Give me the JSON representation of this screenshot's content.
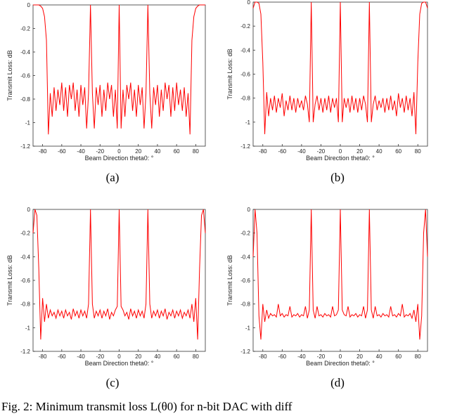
{
  "chart_data": [
    {
      "type": "line",
      "label": "(a)",
      "xlabel": "Beam Direction theta0: °",
      "ylabel": "Transmit Loss: dB",
      "color": "#ff0000",
      "xlim": [
        -90,
        90
      ],
      "xticks": [
        -80,
        -60,
        -40,
        -20,
        0,
        20,
        40,
        60,
        80
      ],
      "ylim": [
        -1.2,
        0
      ],
      "yticks": [
        0,
        -0.2,
        -0.4,
        -0.6,
        -0.8,
        -1,
        -1.2
      ],
      "x": [
        -90,
        -88,
        -86,
        -84,
        -82,
        -80,
        -78,
        -76,
        -74,
        -72,
        -70,
        -68,
        -66,
        -64,
        -62,
        -60,
        -58,
        -56,
        -54,
        -52,
        -50,
        -48,
        -46,
        -44,
        -42,
        -40,
        -38,
        -36,
        -34,
        -32,
        -30,
        -28,
        -26,
        -24,
        -22,
        -20,
        -18,
        -16,
        -14,
        -12,
        -10,
        -8,
        -6,
        -4,
        -2,
        0,
        2,
        4,
        6,
        8,
        10,
        12,
        14,
        16,
        18,
        20,
        22,
        24,
        26,
        28,
        30,
        32,
        34,
        36,
        38,
        40,
        42,
        44,
        46,
        48,
        50,
        52,
        54,
        56,
        58,
        60,
        62,
        64,
        66,
        68,
        70,
        72,
        74,
        76,
        78,
        80,
        82,
        84,
        86,
        88,
        90
      ],
      "values": [
        0,
        0,
        0,
        0,
        -0.01,
        -0.03,
        -0.1,
        -0.3,
        -1.1,
        -0.75,
        -0.95,
        -0.7,
        -0.9,
        -0.72,
        -0.85,
        -0.66,
        -0.9,
        -0.7,
        -0.95,
        -0.68,
        -0.8,
        -0.66,
        -0.9,
        -0.72,
        -0.95,
        -0.68,
        -0.85,
        -0.7,
        -1.05,
        -0.75,
        0,
        -0.75,
        -1.05,
        -0.7,
        -0.85,
        -0.68,
        -0.95,
        -0.72,
        -0.9,
        -0.66,
        -0.8,
        -0.68,
        -0.95,
        -0.72,
        -1.05,
        0,
        -1.05,
        -0.72,
        -0.95,
        -0.68,
        -0.8,
        -0.66,
        -0.9,
        -0.72,
        -0.95,
        -0.68,
        -0.85,
        -0.7,
        -1.05,
        -0.75,
        0,
        -0.75,
        -1.05,
        -0.7,
        -0.85,
        -0.68,
        -0.95,
        -0.72,
        -0.9,
        -0.66,
        -0.8,
        -0.68,
        -0.95,
        -0.7,
        -0.9,
        -0.66,
        -0.85,
        -0.72,
        -0.9,
        -0.7,
        -0.95,
        -0.75,
        -1.1,
        -0.3,
        -0.1,
        -0.03,
        -0.01,
        0,
        0,
        0,
        0
      ]
    },
    {
      "type": "line",
      "label": "(b)",
      "xlabel": "Beam Direction theta0: °",
      "ylabel": "Transmit Loss: dB",
      "color": "#ff0000",
      "xlim": [
        -90,
        90
      ],
      "xticks": [
        -80,
        -60,
        -40,
        -20,
        0,
        20,
        40,
        60,
        80
      ],
      "ylim": [
        -1.2,
        0
      ],
      "yticks": [
        0,
        -0.2,
        -0.4,
        -0.6,
        -0.8,
        -1,
        -1.2
      ],
      "x": [
        -90,
        -88,
        -86,
        -84,
        -82,
        -80,
        -78,
        -76,
        -74,
        -72,
        -70,
        -68,
        -66,
        -64,
        -62,
        -60,
        -58,
        -56,
        -54,
        -52,
        -50,
        -48,
        -46,
        -44,
        -42,
        -40,
        -38,
        -36,
        -34,
        -32,
        -30,
        -28,
        -26,
        -24,
        -22,
        -20,
        -18,
        -16,
        -14,
        -12,
        -10,
        -8,
        -6,
        -4,
        -2,
        0,
        2,
        4,
        6,
        8,
        10,
        12,
        14,
        16,
        18,
        20,
        22,
        24,
        26,
        28,
        30,
        32,
        34,
        36,
        38,
        40,
        42,
        44,
        46,
        48,
        50,
        52,
        54,
        56,
        58,
        60,
        62,
        64,
        66,
        68,
        70,
        72,
        74,
        76,
        78,
        80,
        82,
        84,
        86,
        88,
        90
      ],
      "values": [
        -0.05,
        0,
        0,
        -0.01,
        -0.1,
        -0.5,
        -1.1,
        -0.75,
        -0.95,
        -0.8,
        -0.9,
        -0.78,
        -0.92,
        -0.8,
        -0.88,
        -0.76,
        -0.95,
        -0.82,
        -0.9,
        -0.78,
        -0.9,
        -0.8,
        -0.92,
        -0.8,
        -0.88,
        -0.82,
        -0.9,
        -0.78,
        -0.85,
        -1.0,
        0,
        -1.0,
        -0.85,
        -0.78,
        -0.9,
        -0.8,
        -0.92,
        -0.8,
        -0.9,
        -0.78,
        -0.92,
        -0.8,
        -0.88,
        -0.8,
        -1.0,
        0,
        -1.0,
        -0.8,
        -0.88,
        -0.8,
        -0.92,
        -0.78,
        -0.9,
        -0.8,
        -0.92,
        -0.8,
        -0.9,
        -0.78,
        -0.85,
        -1.0,
        0,
        -1.0,
        -0.85,
        -0.78,
        -0.9,
        -0.82,
        -0.88,
        -0.8,
        -0.92,
        -0.8,
        -0.9,
        -0.78,
        -0.9,
        -0.82,
        -0.95,
        -0.76,
        -0.88,
        -0.8,
        -0.92,
        -0.78,
        -0.9,
        -0.8,
        -0.95,
        -0.75,
        -1.1,
        -0.5,
        -0.1,
        -0.01,
        0,
        0,
        -0.05
      ]
    },
    {
      "type": "line",
      "label": "(c)",
      "xlabel": "Beam Direction theta0: °",
      "ylabel": "Transmit Loss: dB",
      "color": "#ff0000",
      "xlim": [
        -90,
        90
      ],
      "xticks": [
        -80,
        -60,
        -40,
        -20,
        0,
        20,
        40,
        60,
        80
      ],
      "ylim": [
        -1.2,
        0
      ],
      "yticks": [
        0,
        -0.2,
        -0.4,
        -0.6,
        -0.8,
        -1,
        -1.2
      ],
      "x": [
        -90,
        -88,
        -86,
        -84,
        -82,
        -80,
        -78,
        -76,
        -74,
        -72,
        -70,
        -68,
        -66,
        -64,
        -62,
        -60,
        -58,
        -56,
        -54,
        -52,
        -50,
        -48,
        -46,
        -44,
        -42,
        -40,
        -38,
        -36,
        -34,
        -32,
        -30,
        -28,
        -26,
        -24,
        -22,
        -20,
        -18,
        -16,
        -14,
        -12,
        -10,
        -8,
        -6,
        -4,
        -2,
        0,
        2,
        4,
        6,
        8,
        10,
        12,
        14,
        16,
        18,
        20,
        22,
        24,
        26,
        28,
        30,
        32,
        34,
        36,
        38,
        40,
        42,
        44,
        46,
        48,
        50,
        52,
        54,
        56,
        58,
        60,
        62,
        64,
        66,
        68,
        70,
        72,
        74,
        76,
        78,
        80,
        82,
        84,
        86,
        88,
        90
      ],
      "values": [
        -0.2,
        0,
        -0.05,
        -0.5,
        -1.1,
        -0.75,
        -0.95,
        -0.8,
        -0.92,
        -0.85,
        -0.9,
        -0.87,
        -0.92,
        -0.85,
        -0.9,
        -0.86,
        -0.92,
        -0.85,
        -0.9,
        -0.87,
        -0.93,
        -0.84,
        -0.9,
        -0.86,
        -0.92,
        -0.85,
        -0.9,
        -0.86,
        -0.92,
        -0.8,
        0,
        -0.8,
        -0.92,
        -0.86,
        -0.9,
        -0.85,
        -0.92,
        -0.86,
        -0.9,
        -0.84,
        -0.93,
        -0.87,
        -0.9,
        -0.85,
        -0.82,
        0,
        -0.82,
        -0.85,
        -0.9,
        -0.87,
        -0.93,
        -0.84,
        -0.9,
        -0.86,
        -0.92,
        -0.85,
        -0.9,
        -0.86,
        -0.92,
        -0.8,
        0,
        -0.8,
        -0.92,
        -0.86,
        -0.9,
        -0.85,
        -0.92,
        -0.86,
        -0.9,
        -0.84,
        -0.93,
        -0.87,
        -0.9,
        -0.85,
        -0.92,
        -0.86,
        -0.9,
        -0.85,
        -0.92,
        -0.87,
        -0.9,
        -0.85,
        -0.92,
        -0.8,
        -0.95,
        -0.75,
        -1.1,
        -0.5,
        -0.05,
        0,
        -0.2
      ]
    },
    {
      "type": "line",
      "label": "(d)",
      "xlabel": "Beam Direction theta0: °",
      "ylabel": "Transmit Loss: dB",
      "color": "#ff0000",
      "xlim": [
        -90,
        90
      ],
      "xticks": [
        -80,
        -60,
        -40,
        -20,
        0,
        20,
        40,
        60,
        80
      ],
      "ylim": [
        -1.2,
        0
      ],
      "yticks": [
        0,
        -0.2,
        -0.4,
        -0.6,
        -0.8,
        -1,
        -1.2
      ],
      "x": [
        -90,
        -88,
        -86,
        -84,
        -82,
        -80,
        -78,
        -76,
        -74,
        -72,
        -70,
        -68,
        -66,
        -64,
        -62,
        -60,
        -58,
        -56,
        -54,
        -52,
        -50,
        -48,
        -46,
        -44,
        -42,
        -40,
        -38,
        -36,
        -34,
        -32,
        -30,
        -28,
        -26,
        -24,
        -22,
        -20,
        -18,
        -16,
        -14,
        -12,
        -10,
        -8,
        -6,
        -4,
        -2,
        0,
        2,
        4,
        6,
        8,
        10,
        12,
        14,
        16,
        18,
        20,
        22,
        24,
        26,
        28,
        30,
        32,
        34,
        36,
        38,
        40,
        42,
        44,
        46,
        48,
        50,
        52,
        54,
        56,
        58,
        60,
        62,
        64,
        66,
        68,
        70,
        72,
        74,
        76,
        78,
        80,
        82,
        84,
        86,
        88,
        90
      ],
      "values": [
        -0.4,
        0,
        -0.2,
        -0.9,
        -1.1,
        -0.8,
        -0.95,
        -0.85,
        -0.92,
        -0.88,
        -0.9,
        -0.89,
        -0.91,
        -0.8,
        -0.9,
        -0.88,
        -0.91,
        -0.89,
        -0.9,
        -0.82,
        -0.91,
        -0.89,
        -0.9,
        -0.88,
        -0.91,
        -0.89,
        -0.9,
        -0.82,
        -0.92,
        -0.85,
        0,
        -0.85,
        -0.92,
        -0.82,
        -0.9,
        -0.89,
        -0.91,
        -0.88,
        -0.9,
        -0.89,
        -0.91,
        -0.82,
        -0.9,
        -0.89,
        -0.85,
        0,
        -0.85,
        -0.89,
        -0.9,
        -0.82,
        -0.91,
        -0.89,
        -0.9,
        -0.88,
        -0.91,
        -0.89,
        -0.9,
        -0.82,
        -0.92,
        -0.85,
        0,
        -0.85,
        -0.92,
        -0.82,
        -0.9,
        -0.89,
        -0.91,
        -0.88,
        -0.9,
        -0.89,
        -0.91,
        -0.82,
        -0.9,
        -0.89,
        -0.91,
        -0.88,
        -0.9,
        -0.8,
        -0.91,
        -0.89,
        -0.9,
        -0.88,
        -0.92,
        -0.85,
        -0.95,
        -0.8,
        -1.1,
        -0.9,
        -0.2,
        0,
        -0.4
      ]
    }
  ],
  "caption": "Fig. 2: Minimum transmit loss L(θ0) for n-bit DAC with diff"
}
